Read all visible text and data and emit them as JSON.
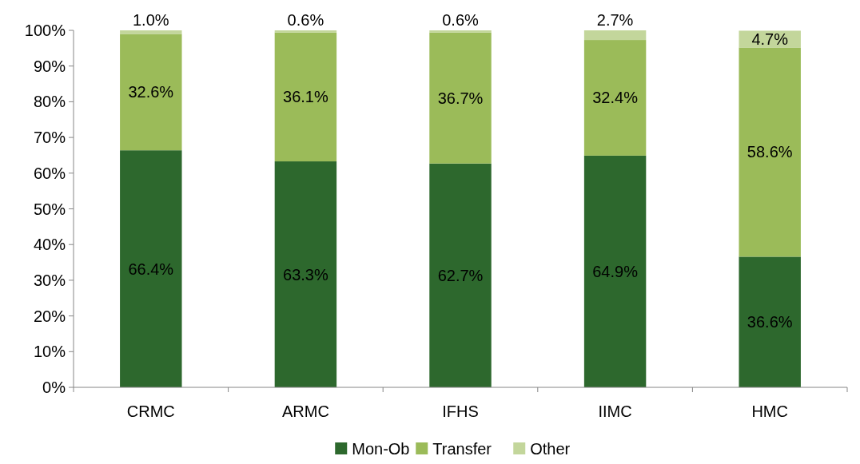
{
  "chart_data": {
    "type": "bar",
    "stacked": true,
    "categories": [
      "CRMC",
      "ARMC",
      "IFHS",
      "IIMC",
      "HMC"
    ],
    "series": [
      {
        "name": "Mon-Ob",
        "color": "#2d682d",
        "values": [
          66.4,
          63.3,
          62.7,
          64.9,
          36.6
        ],
        "value_labels": [
          "66.4%",
          "63.3%",
          "62.7%",
          "64.9%",
          "36.6%"
        ]
      },
      {
        "name": "Transfer",
        "color": "#9bbb59",
        "values": [
          32.6,
          36.1,
          36.7,
          32.4,
          58.6
        ],
        "value_labels": [
          "32.6%",
          "36.1%",
          "36.7%",
          "32.4%",
          "58.6%"
        ]
      },
      {
        "name": "Other",
        "color": "#c3d69b",
        "values": [
          1.0,
          0.6,
          0.6,
          2.7,
          4.7
        ],
        "value_labels": [
          "1.0%",
          "0.6%",
          "0.6%",
          "2.7%",
          "4.7%"
        ]
      }
    ],
    "ylim": [
      0,
      100
    ],
    "yticks": [
      {
        "value": 0,
        "label": "0%"
      },
      {
        "value": 10,
        "label": "10%"
      },
      {
        "value": 20,
        "label": "20%"
      },
      {
        "value": 30,
        "label": "30%"
      },
      {
        "value": 40,
        "label": "40%"
      },
      {
        "value": 50,
        "label": "50%"
      },
      {
        "value": 60,
        "label": "60%"
      },
      {
        "value": 70,
        "label": "70%"
      },
      {
        "value": 80,
        "label": "80%"
      },
      {
        "value": 90,
        "label": "90%"
      },
      {
        "value": 100,
        "label": "100%"
      }
    ],
    "legend": "bottom"
  }
}
